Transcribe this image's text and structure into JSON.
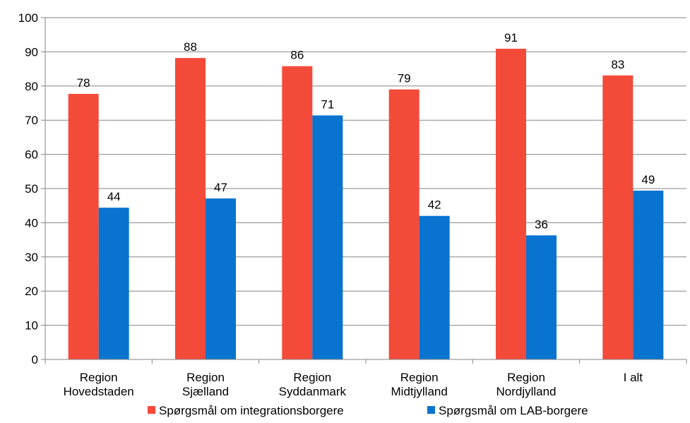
{
  "chart_data": {
    "type": "bar",
    "categories": [
      [
        "Region",
        "Hovedstaden"
      ],
      [
        "Region",
        "Sjælland"
      ],
      [
        "Region",
        "Syddanmark"
      ],
      [
        "Region",
        "Midtjylland"
      ],
      [
        "Region",
        "Nordjylland"
      ],
      [
        "I alt"
      ]
    ],
    "series": [
      {
        "name": "Spørgsmål om integrationsborgere",
        "color": "#f44a3a",
        "values": [
          77.7,
          88.2,
          85.8,
          79.0,
          90.9,
          83.1
        ],
        "labels": [
          "78",
          "88",
          "86",
          "79",
          "91",
          "83"
        ]
      },
      {
        "name": "Spørgsmål om LAB-borgere",
        "color": "#0874d0",
        "values": [
          44.4,
          47.1,
          71.4,
          42.0,
          36.3,
          49.4
        ],
        "labels": [
          "44",
          "47",
          "71",
          "42",
          "36",
          "49"
        ]
      }
    ],
    "ylim": [
      0,
      100
    ],
    "yticks": [
      0,
      10,
      20,
      30,
      40,
      50,
      60,
      70,
      80,
      90,
      100
    ],
    "grid": true,
    "legend_position": "bottom"
  }
}
